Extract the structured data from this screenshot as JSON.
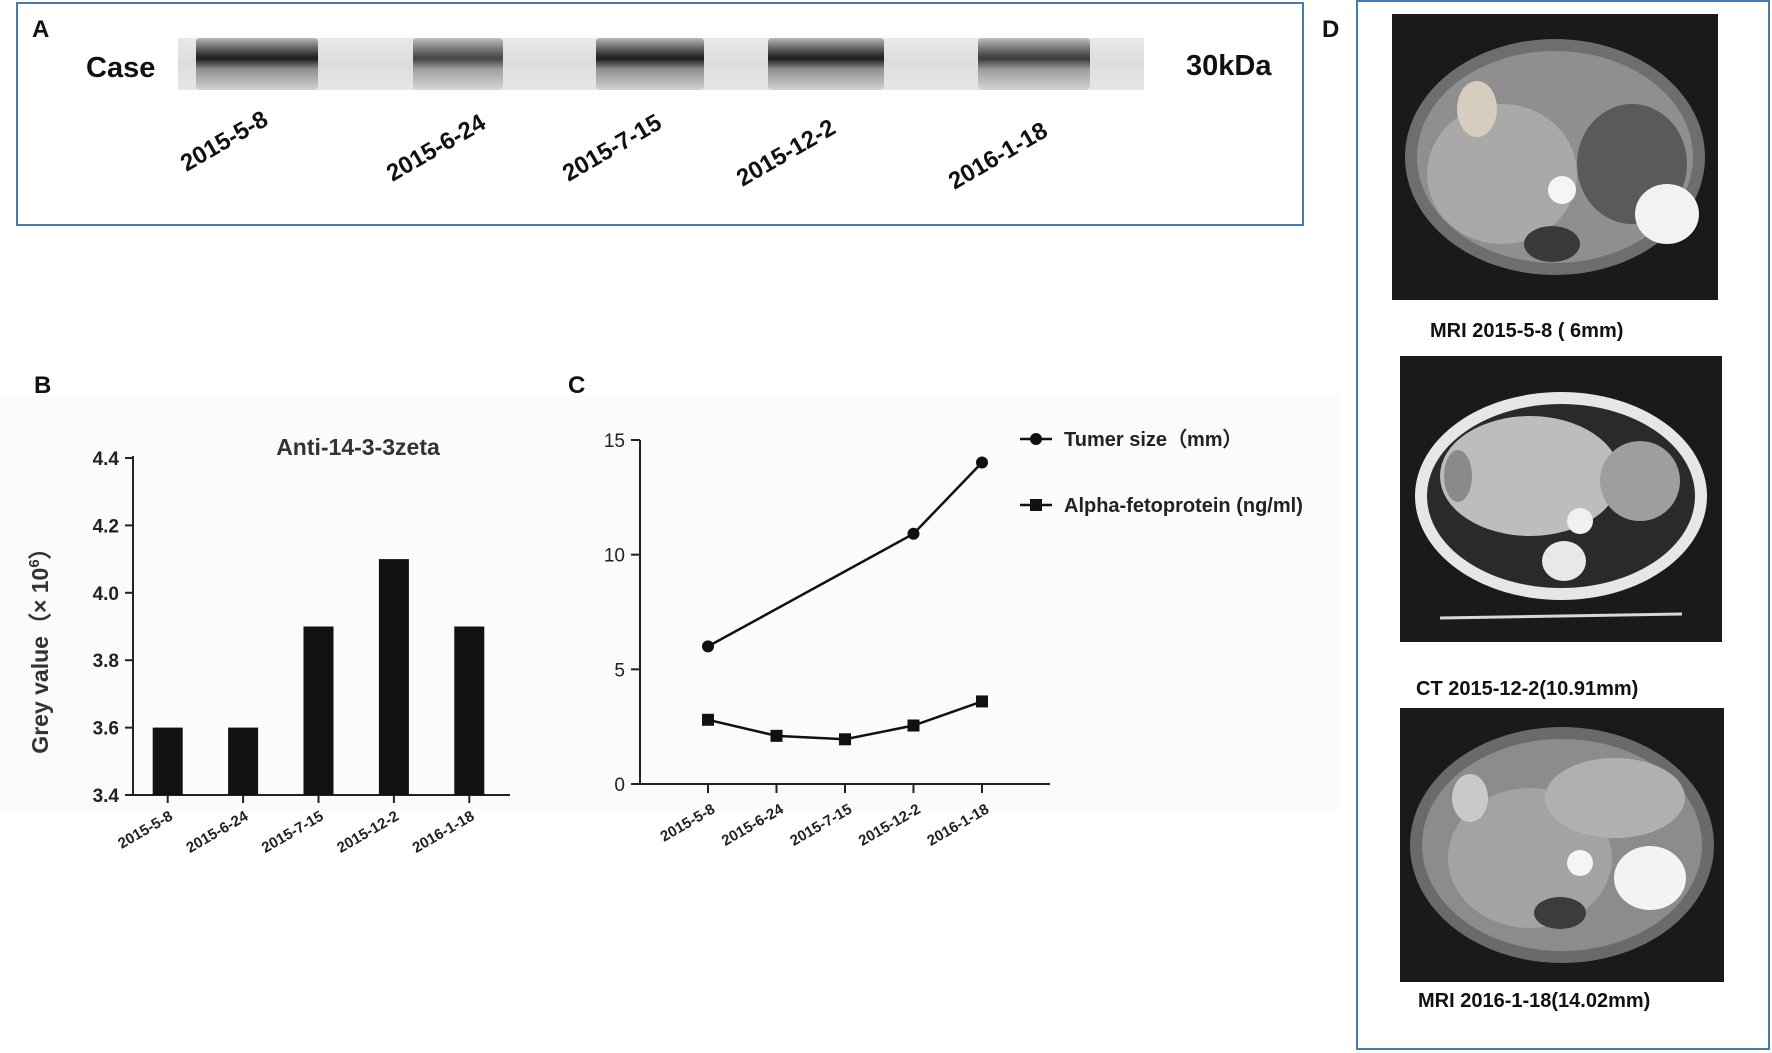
{
  "panel_a": {
    "letter": "A",
    "left_label": "Case",
    "right_label": "30kDa",
    "lanes": [
      "2015-5-8",
      "2015-6-24",
      "2015-7-15",
      "2015-12-2",
      "2016-1-18"
    ]
  },
  "panel_b": {
    "letter": "B"
  },
  "panel_c": {
    "letter": "C"
  },
  "panel_d": {
    "letter": "D",
    "captions": [
      "MRI 2015-5-8 ( 6mm)",
      "CT 2015-12-2(10.91mm)",
      "MRI 2016-1-18(14.02mm)"
    ]
  },
  "chart_data": [
    {
      "type": "bar",
      "title": "Anti-14-3-3zeta",
      "ylabel": "Grey value（× 10",
      "ylabel_sup": "6",
      "ylabel_close": "）",
      "categories": [
        "2015-5-8",
        "2015-6-24",
        "2015-7-15",
        "2015-12-2",
        "2016-1-18"
      ],
      "values": [
        3.6,
        3.6,
        3.9,
        4.1,
        3.9
      ],
      "ylim": [
        3.4,
        4.4
      ],
      "yticks": [
        "3.4",
        "3.6",
        "3.8",
        "4.0",
        "4.2",
        "4.4"
      ],
      "color": "#111111"
    },
    {
      "type": "line",
      "categories": [
        "2015-5-8",
        "2015-6-24",
        "2015-7-15",
        "2015-12-2",
        "2016-1-18"
      ],
      "ylim": [
        0,
        15
      ],
      "yticks": [
        "0",
        "5",
        "10",
        "15"
      ],
      "series": [
        {
          "name": "Tumer size（mm）",
          "marker": "circle",
          "points": [
            [
              0,
              6.0
            ],
            [
              3,
              10.91
            ],
            [
              4,
              14.02
            ]
          ]
        },
        {
          "name": "Alpha-fetoprotein (ng/ml)",
          "marker": "square",
          "points": [
            [
              0,
              2.8
            ],
            [
              1,
              2.1
            ],
            [
              2,
              1.95
            ],
            [
              3,
              2.55
            ],
            [
              4,
              3.6
            ]
          ]
        }
      ],
      "legend": "top-right",
      "color": "#111111"
    }
  ]
}
